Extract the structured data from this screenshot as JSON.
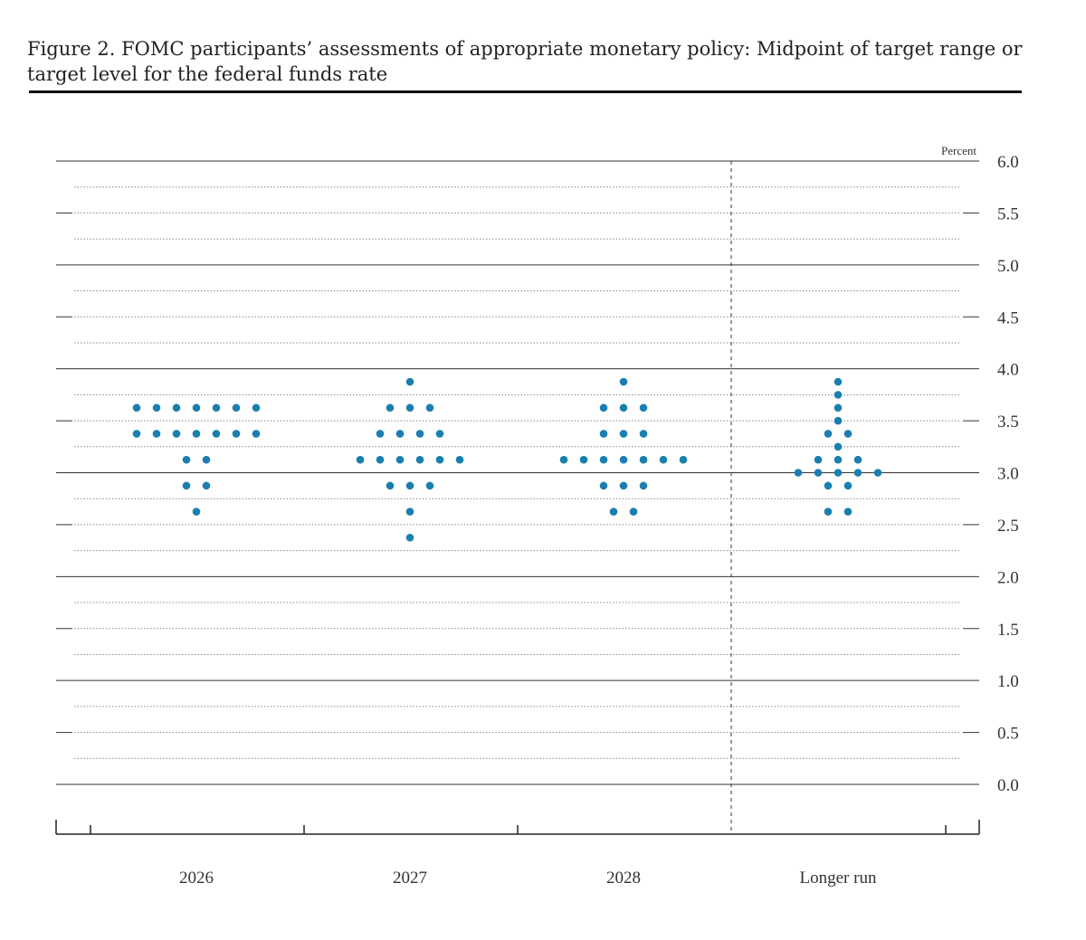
{
  "figure": {
    "title": "Figure 2. FOMC participants’ assessments of appropriate monetary policy: Midpoint of target range or target level for the federal funds rate"
  },
  "chart_data": {
    "type": "scatter",
    "title": "Figure 2. FOMC participants’ assessments of appropriate monetary policy: Midpoint of target range or target level for the federal funds rate",
    "xlabel": "",
    "ylabel": "Percent",
    "ylim": [
      0,
      6
    ],
    "yticks": [
      "6.0",
      "5.5",
      "5.0",
      "4.5",
      "4.0",
      "3.5",
      "3.0",
      "2.5",
      "2.0",
      "1.5",
      "1.0",
      "0.5",
      "0.0"
    ],
    "ytick_values": [
      6.0,
      5.5,
      5.0,
      4.5,
      4.0,
      3.5,
      3.0,
      2.5,
      2.0,
      1.5,
      1.0,
      0.5,
      0.0
    ],
    "categories": [
      "2026",
      "2027",
      "2028",
      "Longer run"
    ],
    "grid": true,
    "dot_color": "#1a7fb0",
    "columns": [
      {
        "category": "2026",
        "dots": [
          {
            "rate": 3.625,
            "count": 7
          },
          {
            "rate": 3.375,
            "count": 7
          },
          {
            "rate": 3.125,
            "count": 2
          },
          {
            "rate": 2.875,
            "count": 2
          },
          {
            "rate": 2.625,
            "count": 1
          }
        ]
      },
      {
        "category": "2027",
        "dots": [
          {
            "rate": 3.875,
            "count": 1
          },
          {
            "rate": 3.625,
            "count": 3
          },
          {
            "rate": 3.375,
            "count": 4
          },
          {
            "rate": 3.125,
            "count": 6
          },
          {
            "rate": 2.875,
            "count": 3
          },
          {
            "rate": 2.625,
            "count": 1
          },
          {
            "rate": 2.375,
            "count": 1
          }
        ]
      },
      {
        "category": "2028",
        "dots": [
          {
            "rate": 3.875,
            "count": 1
          },
          {
            "rate": 3.625,
            "count": 3
          },
          {
            "rate": 3.375,
            "count": 3
          },
          {
            "rate": 3.125,
            "count": 7
          },
          {
            "rate": 2.875,
            "count": 3
          },
          {
            "rate": 2.625,
            "count": 2
          }
        ]
      },
      {
        "category": "Longer run",
        "dots": [
          {
            "rate": 3.875,
            "count": 1
          },
          {
            "rate": 3.75,
            "count": 1
          },
          {
            "rate": 3.625,
            "count": 1
          },
          {
            "rate": 3.5,
            "count": 1
          },
          {
            "rate": 3.375,
            "count": 2
          },
          {
            "rate": 3.25,
            "count": 1
          },
          {
            "rate": 3.125,
            "count": 3
          },
          {
            "rate": 3.0,
            "count": 5
          },
          {
            "rate": 2.875,
            "count": 2
          },
          {
            "rate": 2.625,
            "count": 2
          }
        ]
      }
    ]
  }
}
